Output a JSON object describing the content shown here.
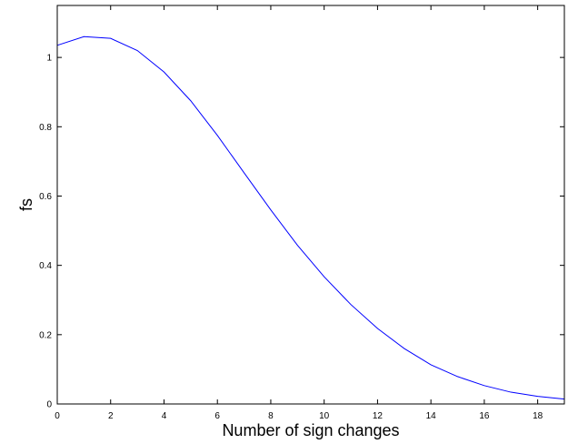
{
  "chart_data": {
    "type": "line",
    "title": "",
    "xlabel": "Number of sign changes",
    "ylabel": "fs",
    "xlim": [
      0,
      19
    ],
    "ylim": [
      0,
      1.15
    ],
    "xticks": [
      0,
      2,
      4,
      6,
      8,
      10,
      12,
      14,
      16,
      18
    ],
    "xtick_labels": [
      "0",
      "2",
      "4",
      "6",
      "8",
      "10",
      "12",
      "14",
      "16",
      "18"
    ],
    "yticks": [
      0,
      0.2,
      0.4,
      0.6,
      0.8,
      1
    ],
    "ytick_labels": [
      "0",
      "0.2",
      "0.4",
      "0.6",
      "0.8",
      "1"
    ],
    "grid": false,
    "box": true,
    "series": [
      {
        "color": "#0000ff",
        "x": [
          0,
          1,
          2,
          3,
          4,
          5,
          6,
          7,
          8,
          9,
          10,
          11,
          12,
          13,
          14,
          15,
          16,
          17,
          18,
          19
        ],
        "y": [
          1.035,
          1.06,
          1.055,
          1.02,
          0.958,
          0.875,
          0.775,
          0.667,
          0.56,
          0.458,
          0.367,
          0.287,
          0.218,
          0.16,
          0.113,
          0.079,
          0.053,
          0.034,
          0.022,
          0.014
        ]
      }
    ]
  }
}
